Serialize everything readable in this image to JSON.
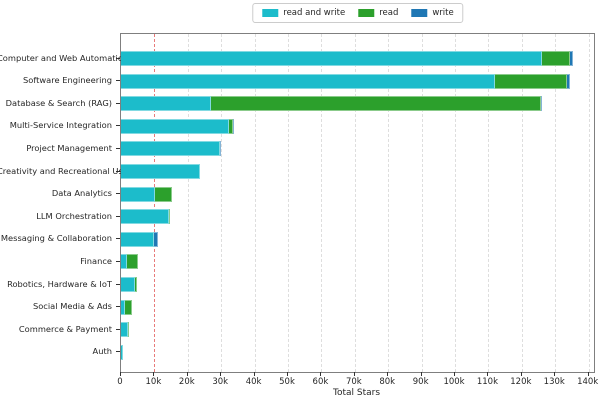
{
  "chart_data": {
    "type": "bar",
    "orientation": "horizontal",
    "stacked": true,
    "xlabel": "Total Stars",
    "ylabel": "",
    "xlim": [
      0,
      141600
    ],
    "xticks": [
      0,
      10000,
      20000,
      30000,
      40000,
      50000,
      60000,
      70000,
      80000,
      90000,
      100000,
      110000,
      120000,
      130000,
      140000
    ],
    "xtick_labels": [
      "0",
      "10k",
      "20k",
      "30k",
      "40k",
      "50k",
      "60k",
      "70k",
      "80k",
      "90k",
      "100k",
      "110k",
      "120k",
      "130k",
      "140k"
    ],
    "grid": "vertical-dashed",
    "legend_position": "top-center",
    "reference_line": {
      "value": 10000,
      "style": "dashed",
      "color": "#e87a7a"
    },
    "categories": [
      "Computer and Web Automation",
      "Software Engineering",
      "Database & Search (RAG)",
      "Multi-Service Integration",
      "Project Management",
      "Creativity and Recreational Use",
      "Data Analytics",
      "LLM Orchestration",
      "Messaging & Collaboration",
      "Finance",
      "Robotics, Hardware & IoT",
      "Social Media & Ads",
      "Commerce & Payment",
      "Auth"
    ],
    "series": [
      {
        "name": "read and write",
        "color": "#1cbccb",
        "values": [
          126000,
          112000,
          26900,
          32300,
          29500,
          23600,
          10200,
          14300,
          9800,
          1800,
          4200,
          1300,
          2200,
          600
        ]
      },
      {
        "name": "read",
        "color": "#2ca02c",
        "values": [
          8400,
          21500,
          98800,
          1100,
          0,
          0,
          5000,
          100,
          0,
          3200,
          700,
          2000,
          100,
          0
        ]
      },
      {
        "name": "write",
        "color": "#1f77b4",
        "values": [
          900,
          1000,
          300,
          100,
          100,
          0,
          0,
          0,
          1400,
          0,
          0,
          0,
          0,
          0
        ]
      }
    ],
    "colors": {
      "grid": "#dedede",
      "spine": "#7f7f7f",
      "text": "#262626"
    }
  }
}
